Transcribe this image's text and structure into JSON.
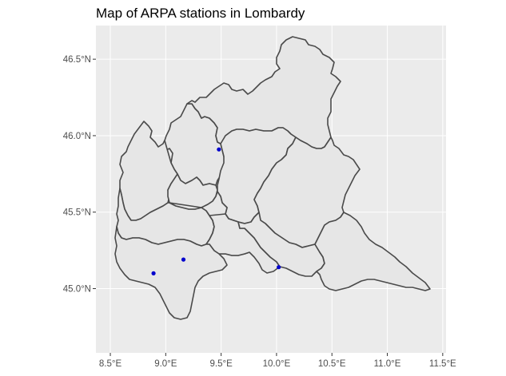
{
  "chart_data": {
    "type": "scatter",
    "title": "Map of ARPA stations in Lombardy",
    "xlabel": "",
    "ylabel": "",
    "x_ticks": [
      8.5,
      9.0,
      9.5,
      10.0,
      10.5,
      11.0,
      11.5
    ],
    "y_ticks": [
      45.0,
      45.5,
      46.0,
      46.5
    ],
    "x_tick_labels": [
      "8.5°E",
      "9.0°E",
      "9.5°E",
      "10.0°E",
      "10.5°E",
      "11.0°E",
      "11.5°E"
    ],
    "y_tick_labels": [
      "45.0°N",
      "45.5°N",
      "46.0°N",
      "46.5°N"
    ],
    "xlim": [
      8.37,
      11.53
    ],
    "ylim": [
      44.58,
      46.72
    ],
    "grid": true,
    "panel_background": "#ebebeb",
    "region_fill": "#e6e6e6",
    "region_border": "#4a4a4a",
    "point_color": "#0000cd",
    "series": [
      {
        "points": [
          {
            "lon": 8.89,
            "lat": 45.1
          },
          {
            "lon": 9.16,
            "lat": 45.19
          },
          {
            "lon": 9.48,
            "lat": 45.91
          },
          {
            "lon": 10.02,
            "lat": 45.14
          }
        ]
      }
    ]
  }
}
